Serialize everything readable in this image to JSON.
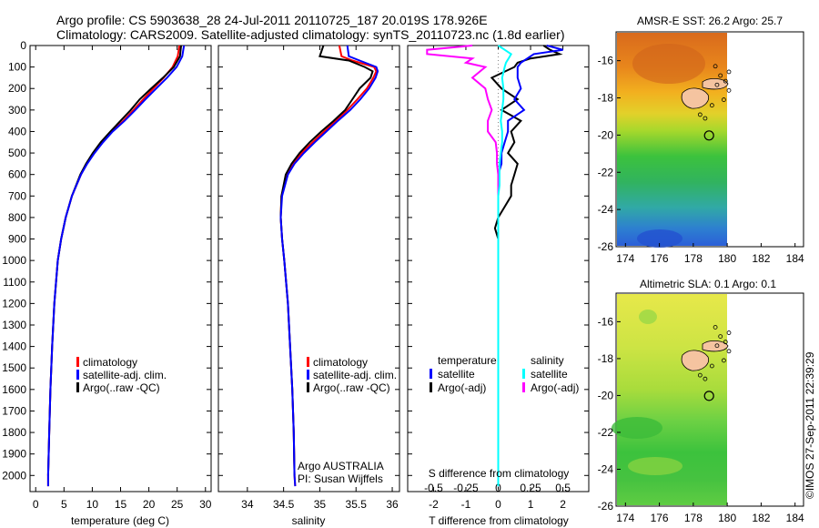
{
  "header": {
    "line1": "Argo profile: CS 5903638_28 24-Jul-2011 20110725_187 20.019S 178.926E",
    "line2": "Climatology: CARS2009. Satellite-adjusted climatology: synTS_20110723.nc (1.8d earlier)"
  },
  "credit": "©IMOS 27-Sep-2011 22:39:29",
  "colors": {
    "climatology": "#ff0000",
    "satellite": "#0000ff",
    "argo": "#000000",
    "salinity_sat": "#00ffff",
    "salinity_argo": "#ff00ff"
  },
  "legend": {
    "climatology": "climatology",
    "satellite_adj": "satellite-adj. clim.",
    "argo_raw": "Argo(..raw -QC)",
    "temperature": "temperature",
    "salinity": "salinity",
    "satellite": "satellite",
    "argo_adj": "Argo(-adj)"
  },
  "float_info": {
    "program": "Argo AUSTRALIA",
    "pi": "PI: Susan Wijffels"
  },
  "chart_data": [
    {
      "type": "line",
      "name": "temperature",
      "xlabel": "temperature (deg C)",
      "xlim": [
        -1,
        31
      ],
      "xticks": [
        0,
        5,
        10,
        15,
        20,
        25,
        30
      ],
      "ylim": [
        0,
        2075
      ],
      "yticks": [
        0,
        100,
        200,
        300,
        400,
        500,
        600,
        700,
        800,
        900,
        1000,
        1100,
        1200,
        1300,
        1400,
        1500,
        1600,
        1700,
        1800,
        1900,
        2000
      ],
      "depth": [
        0,
        50,
        100,
        150,
        200,
        250,
        300,
        350,
        400,
        450,
        500,
        550,
        600,
        700,
        800,
        900,
        1000,
        1200,
        1400,
        1600,
        1800,
        2000,
        2050
      ],
      "series": [
        {
          "name": "climatology",
          "values": [
            25.4,
            25.1,
            24.2,
            22.6,
            20.8,
            19.0,
            17.3,
            15.5,
            13.5,
            11.8,
            10.3,
            9.0,
            8.0,
            6.4,
            5.3,
            4.5,
            3.9,
            3.3,
            2.9,
            2.6,
            2.4,
            2.2,
            2.2
          ]
        },
        {
          "name": "satellite-adj. clim.",
          "values": [
            26.2,
            25.9,
            24.9,
            23.2,
            21.3,
            19.4,
            17.6,
            15.7,
            13.6,
            11.9,
            10.4,
            9.1,
            8.0,
            6.4,
            5.3,
            4.5,
            3.9,
            3.3,
            2.9,
            2.6,
            2.4,
            2.2,
            2.2
          ]
        },
        {
          "name": "Argo(..raw -QC)",
          "values": [
            25.7,
            25.5,
            24.4,
            22.5,
            20.4,
            18.4,
            16.8,
            15.0,
            13.2,
            11.5,
            10.1,
            8.9,
            7.9,
            6.4,
            5.3,
            4.5,
            3.9,
            3.3,
            2.9,
            2.6,
            2.4,
            2.2,
            null
          ]
        }
      ]
    },
    {
      "type": "line",
      "name": "salinity",
      "xlabel": "salinity",
      "xlim": [
        33.6,
        36.1
      ],
      "xticks": [
        34,
        34.5,
        35,
        35.5,
        36
      ],
      "ylim": [
        0,
        2075
      ],
      "depth": [
        0,
        50,
        70,
        100,
        120,
        150,
        200,
        250,
        300,
        350,
        400,
        450,
        500,
        550,
        600,
        700,
        800,
        900,
        1000,
        1200,
        1400,
        1600,
        1800,
        2000,
        2050
      ],
      "series": [
        {
          "name": "climatology",
          "values": [
            35.27,
            35.3,
            35.45,
            35.75,
            35.78,
            35.74,
            35.65,
            35.52,
            35.38,
            35.22,
            35.06,
            34.9,
            34.75,
            34.63,
            34.55,
            34.47,
            34.46,
            34.48,
            34.51,
            34.56,
            34.59,
            34.62,
            34.64,
            34.65,
            34.66
          ]
        },
        {
          "name": "satellite-adj. clim.",
          "values": [
            35.38,
            35.4,
            35.55,
            35.78,
            35.8,
            35.77,
            35.68,
            35.56,
            35.42,
            35.25,
            35.09,
            34.93,
            34.78,
            34.65,
            34.56,
            34.48,
            34.46,
            34.48,
            34.51,
            34.56,
            34.59,
            34.62,
            34.64,
            34.65,
            34.66
          ]
        },
        {
          "name": "Argo(..raw -QC)",
          "values": [
            35.05,
            35.0,
            35.4,
            35.62,
            35.73,
            35.7,
            35.55,
            35.45,
            35.35,
            35.19,
            35.02,
            34.86,
            34.72,
            34.61,
            34.53,
            34.47,
            34.46,
            34.48,
            34.51,
            34.56,
            34.59,
            34.62,
            34.64,
            34.65,
            null
          ]
        }
      ]
    },
    {
      "type": "line",
      "name": "difference",
      "xlabel_bottom": "T difference from climatology",
      "xlabel_top": "S difference from climatology",
      "xlim": [
        -2.8,
        2.8
      ],
      "xticks_T": [
        -2,
        -1,
        0,
        1,
        2
      ],
      "xticks_S": [
        -0.5,
        -0.25,
        0,
        0.25,
        0.5
      ],
      "ylim": [
        0,
        2075
      ],
      "depth": [
        0,
        20,
        40,
        60,
        80,
        100,
        150,
        200,
        250,
        300,
        350,
        400,
        450,
        500,
        550,
        600,
        650,
        700,
        750,
        800,
        850,
        900,
        1000,
        1200,
        1400,
        1600,
        1800,
        1900,
        2000,
        2050
      ],
      "series": [
        {
          "name": "temperature satellite",
          "values": [
            1.5,
            2.0,
            1.1,
            0.9,
            0.7,
            0.6,
            0.6,
            0.7,
            0.5,
            0.8,
            0.3,
            0.3,
            0.2,
            0.1,
            0.1,
            0.0,
            0.0,
            0.0,
            0.0,
            0.0,
            0.0,
            0.0,
            0.0,
            0.0,
            0.0,
            0.0,
            0.0,
            0.0,
            0.0,
            0.0
          ]
        },
        {
          "name": "temperature Argo(-adj)",
          "values": [
            1.4,
            1.6,
            1.9,
            1.0,
            0.6,
            0.5,
            -0.2,
            0.1,
            0.6,
            0.1,
            0.7,
            0.4,
            0.5,
            0.3,
            0.6,
            0.5,
            0.4,
            0.4,
            0.2,
            0.0,
            -0.1,
            0.0,
            0.0,
            0.0,
            0.0,
            0.0,
            0.0,
            0.0,
            0.0,
            null
          ]
        },
        {
          "name": "salinity satellite",
          "values": [
            0.0,
            0.05,
            0.1,
            0.08,
            0.06,
            0.05,
            0.03,
            0.04,
            0.04,
            0.03,
            0.02,
            0.03,
            0.03,
            0.02,
            0.01,
            0.01,
            0.01,
            0.0,
            0.0,
            0.0,
            0.0,
            0.0,
            0.0,
            0.0,
            0.0,
            0.0,
            0.0,
            0.0,
            0.0,
            0.0
          ]
        },
        {
          "name": "salinity Argo(-adj)",
          "values": [
            -0.2,
            -0.55,
            -0.55,
            -0.2,
            -0.25,
            -0.1,
            -0.2,
            -0.1,
            -0.08,
            -0.05,
            -0.08,
            -0.08,
            -0.02,
            -0.01,
            -0.01,
            0.0,
            0.0,
            0.0,
            0.0,
            0.0,
            0.0,
            0.0,
            0.0,
            0.0,
            0.0,
            0.0,
            0.0,
            0.0,
            0.0,
            null
          ]
        }
      ]
    },
    {
      "type": "heatmap",
      "name": "sst_map",
      "title": "AMSR-E SST: 26.2  Argo: 25.7",
      "xlim": [
        173.5,
        184.5
      ],
      "ylim": [
        -26,
        -14.5
      ],
      "xticks": [
        174,
        176,
        178,
        180,
        182,
        184
      ],
      "yticks": [
        -16,
        -18,
        -20,
        -22,
        -24,
        -26
      ],
      "data_east_limit": 180,
      "float_position": [
        178.93,
        -20.02
      ]
    },
    {
      "type": "heatmap",
      "name": "sla_map",
      "title": "Altimetric SLA: 0.1  Argo: 0.1",
      "xlim": [
        173.5,
        184.5
      ],
      "ylim": [
        -26,
        -14.5
      ],
      "xticks": [
        174,
        176,
        178,
        180,
        182,
        184
      ],
      "yticks": [
        -16,
        -18,
        -20,
        -22,
        -24,
        -26
      ],
      "data_east_limit": 180,
      "float_position": [
        178.93,
        -20.02
      ]
    }
  ]
}
